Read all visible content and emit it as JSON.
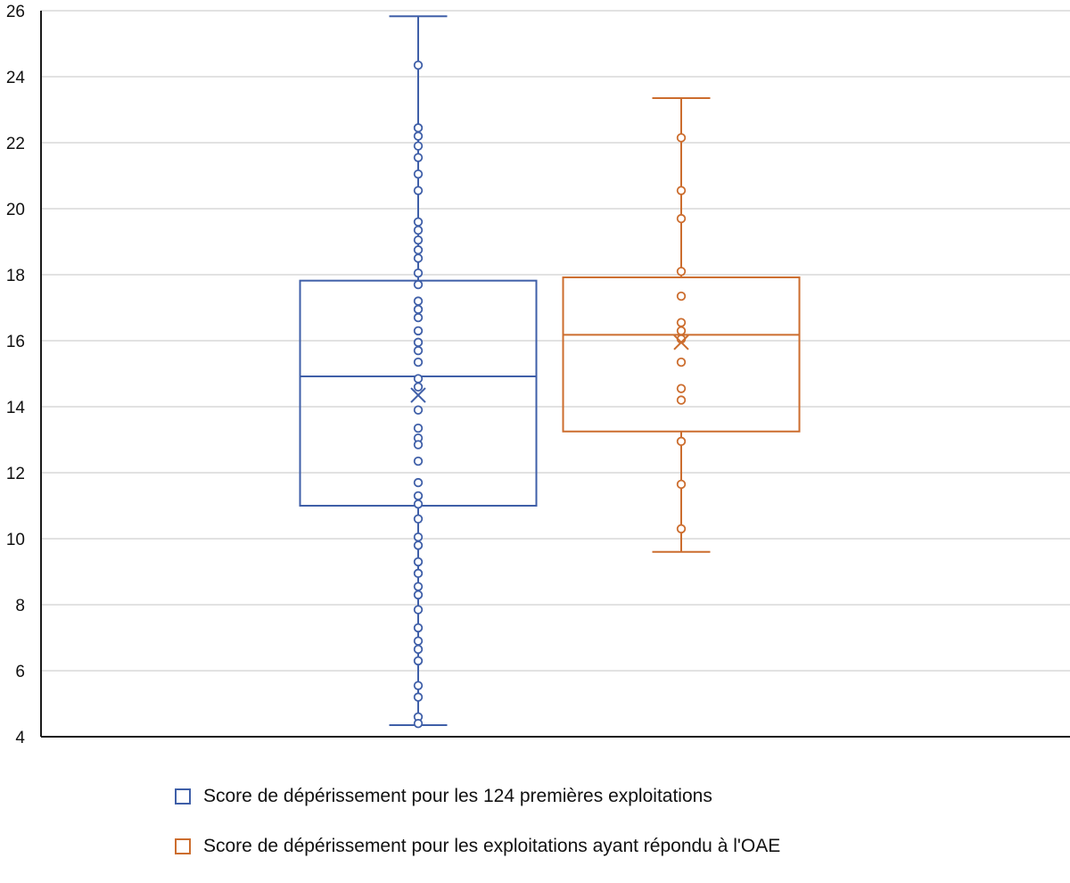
{
  "chart_data": {
    "type": "box",
    "ylim": [
      4,
      26
    ],
    "yticks": [
      4,
      6,
      8,
      10,
      12,
      14,
      16,
      18,
      20,
      22,
      24,
      26
    ],
    "grid": true,
    "legend_position": "bottom",
    "series": [
      {
        "name": "Score de dépérissement pour les 124 premières exploitations",
        "color": "#3f5fa8",
        "min": 4.35,
        "q1": 11.0,
        "median": 14.92,
        "q3": 17.82,
        "max": 25.83,
        "mean": 14.35,
        "points": [
          24.35,
          22.45,
          22.2,
          21.9,
          21.55,
          21.05,
          20.55,
          19.6,
          19.35,
          19.05,
          18.75,
          18.5,
          18.05,
          17.7,
          17.2,
          16.95,
          16.7,
          16.3,
          15.95,
          15.7,
          15.35,
          14.85,
          14.6,
          13.9,
          13.35,
          13.05,
          12.85,
          12.35,
          11.7,
          11.3,
          11.05,
          10.6,
          10.05,
          9.8,
          9.3,
          8.95,
          8.55,
          8.3,
          7.85,
          7.3,
          6.9,
          6.65,
          6.3,
          5.55,
          5.2,
          4.6,
          4.4
        ]
      },
      {
        "name": "Score de dépérissement pour les exploitations ayant répondu à l'OAE",
        "color": "#cc6d2e",
        "min": 9.6,
        "q1": 13.25,
        "median": 16.18,
        "q3": 17.92,
        "max": 23.35,
        "mean": 15.95,
        "points": [
          22.15,
          20.55,
          19.7,
          18.1,
          17.35,
          16.55,
          16.3,
          16.05,
          15.35,
          14.55,
          14.2,
          12.95,
          11.65,
          10.3
        ]
      }
    ]
  }
}
